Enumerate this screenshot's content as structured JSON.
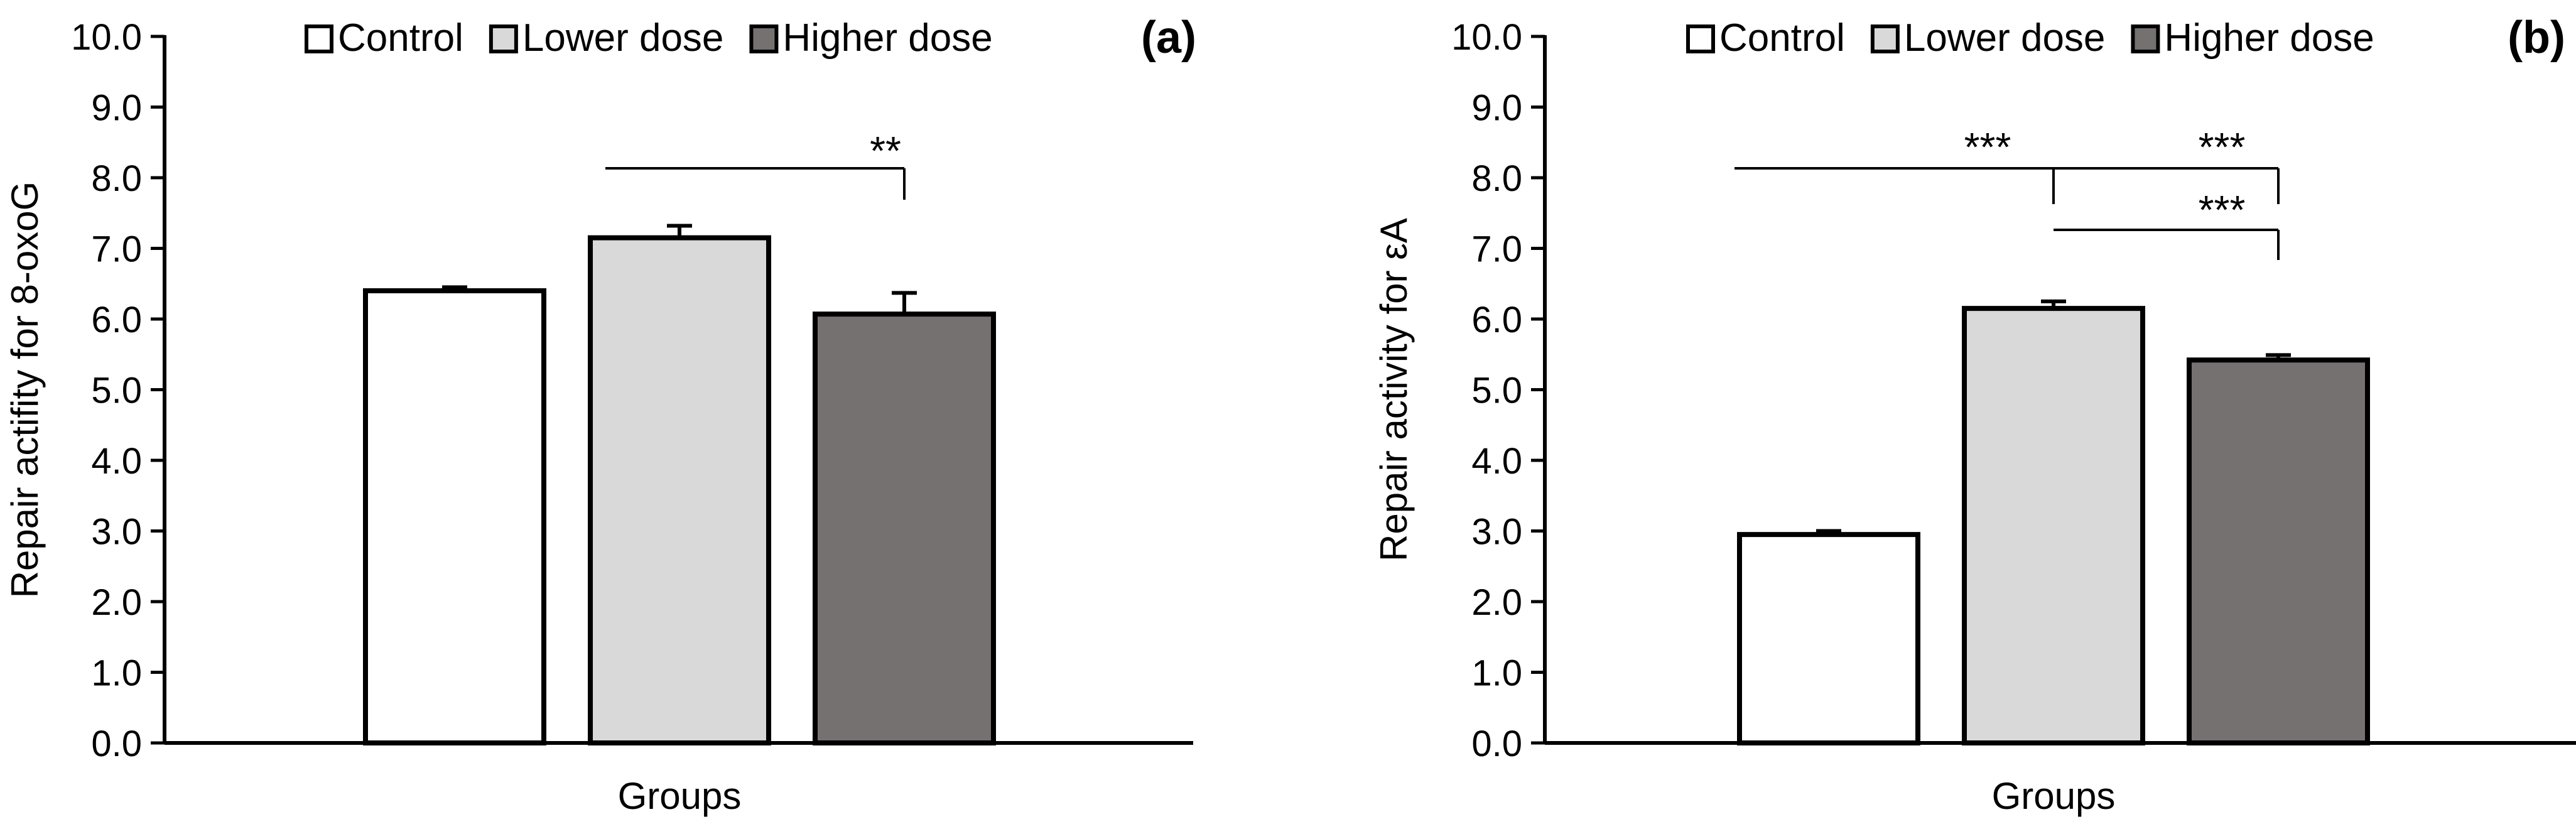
{
  "colors": {
    "control": "#FFFFFF",
    "lower": "#D9D9D9",
    "higher": "#767171",
    "outline": "#000000",
    "background": "#FFFFFF"
  },
  "chart_data": [
    {
      "type": "bar",
      "panel_label": "(a)",
      "title": "",
      "xlabel": "Groups",
      "ylabel": "Repair actifity for 8-oxoG",
      "ylim": [
        0,
        10
      ],
      "yticks": [
        "0.0",
        "1.0",
        "2.0",
        "3.0",
        "4.0",
        "5.0",
        "6.0",
        "7.0",
        "8.0",
        "9.0",
        "10.0"
      ],
      "grid": false,
      "legend_position": "top",
      "series": [
        {
          "name": "Control",
          "values": [
            6.4
          ],
          "error": [
            0.05
          ],
          "color_key": "control"
        },
        {
          "name": "Lower dose",
          "values": [
            7.15
          ],
          "error": [
            0.17
          ],
          "color_key": "lower"
        },
        {
          "name": "Higher dose",
          "values": [
            6.07
          ],
          "error": [
            0.3
          ],
          "color_key": "higher"
        }
      ],
      "significance": [
        {
          "from": "Lower dose",
          "to": "Higher dose",
          "label": "**"
        }
      ]
    },
    {
      "type": "bar",
      "panel_label": "(b)",
      "title": "",
      "xlabel": "Groups",
      "ylabel": "Repair activity for εA",
      "ylim": [
        0,
        10
      ],
      "yticks": [
        "0.0",
        "1.0",
        "2.0",
        "3.0",
        "4.0",
        "5.0",
        "6.0",
        "7.0",
        "8.0",
        "9.0",
        "10.0"
      ],
      "grid": false,
      "legend_position": "top",
      "series": [
        {
          "name": "Control",
          "values": [
            2.95
          ],
          "error": [
            0.05
          ],
          "color_key": "control"
        },
        {
          "name": "Lower dose",
          "values": [
            6.15
          ],
          "error": [
            0.1
          ],
          "color_key": "lower"
        },
        {
          "name": "Higher dose",
          "values": [
            5.42
          ],
          "error": [
            0.07
          ],
          "color_key": "higher"
        }
      ],
      "significance": [
        {
          "from": "Control",
          "to": "Higher dose",
          "label": "***",
          "label_above": "Lower dose"
        },
        {
          "from": "Control",
          "to": "Higher dose",
          "label": "***",
          "label_above": "Higher dose"
        },
        {
          "from": "Lower dose",
          "to": "Higher dose",
          "label": "***"
        }
      ]
    }
  ]
}
